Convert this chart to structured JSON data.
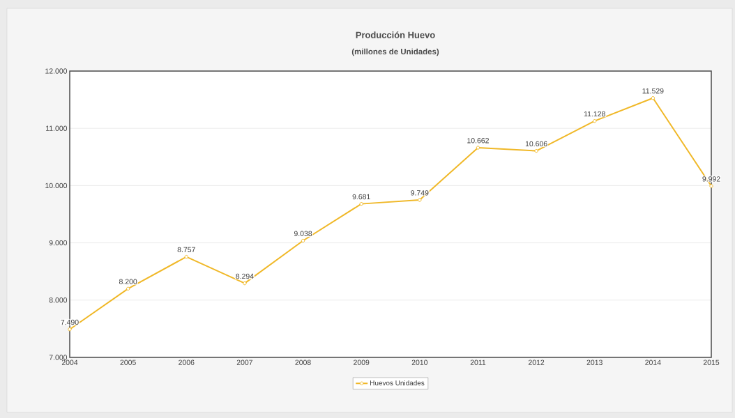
{
  "chart_data": {
    "type": "line",
    "title": "Producción Huevo",
    "subtitle": "(millones de Unidades)",
    "categories": [
      "2004",
      "2005",
      "2006",
      "2007",
      "2008",
      "2009",
      "2010",
      "2011",
      "2012",
      "2013",
      "2014",
      "2015"
    ],
    "series": [
      {
        "name": "Huevos Unidades",
        "color": "#f0b828",
        "values": [
          7490,
          8200,
          8757,
          8294,
          9038,
          9681,
          9749,
          10662,
          10606,
          11128,
          11529,
          9992
        ],
        "value_labels": [
          "7.490",
          "8.200",
          "8.757",
          "8.294",
          "9.038",
          "9.681",
          "9.749",
          "10.662",
          "10.606",
          "11.128",
          "11.529",
          "9.992"
        ]
      }
    ],
    "ylim": [
      7000,
      12000
    ],
    "yticks": [
      {
        "value": 7000,
        "label": "7.000"
      },
      {
        "value": 8000,
        "label": "8.000"
      },
      {
        "value": 9000,
        "label": "9.000"
      },
      {
        "value": 10000,
        "label": "10.000"
      },
      {
        "value": 11000,
        "label": "11.000"
      },
      {
        "value": 12000,
        "label": "12.000"
      }
    ],
    "grid": "y",
    "legend": "bottom",
    "marker": "circle",
    "line_style": "solid"
  }
}
